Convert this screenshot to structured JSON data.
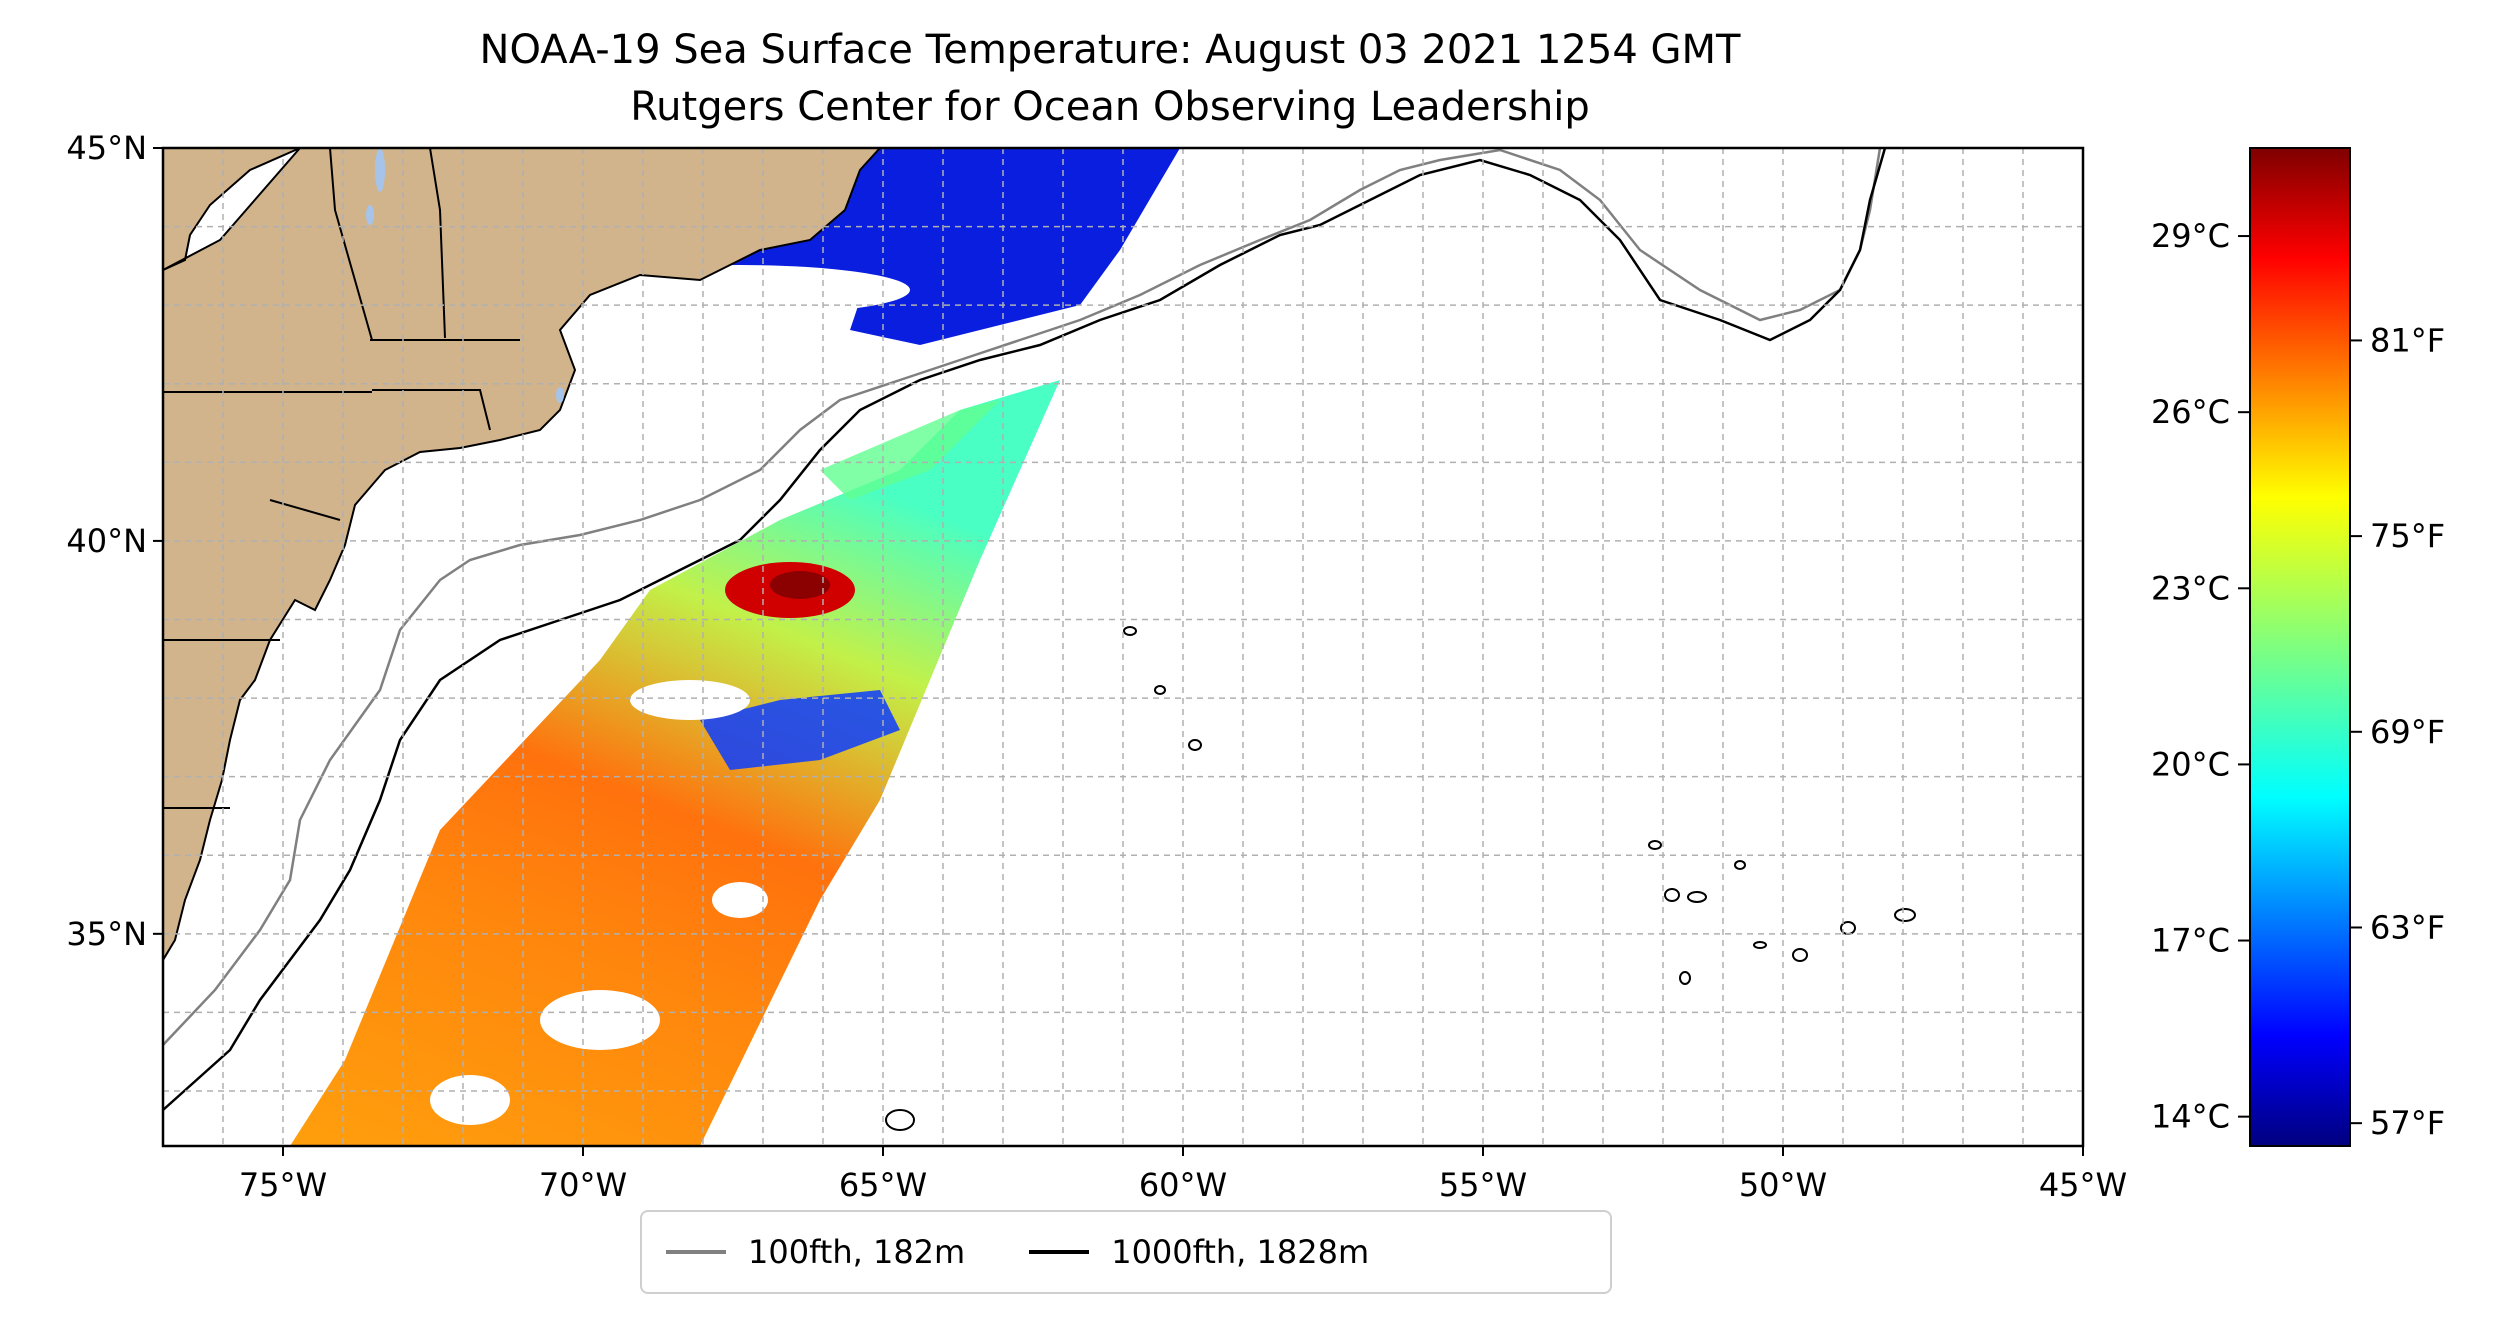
{
  "map": {
    "title_line1": "NOAA-19 Sea Surface Temperature: August 03 2021 1254 GMT",
    "title_line2": "Rutgers Center for Ocean Observing Leadership",
    "extent": {
      "lon_min": -77,
      "lon_max": -45,
      "lat_min": 32.3,
      "lat_max": 45
    },
    "lon_ticks": [
      {
        "value": -75,
        "label": "75°W"
      },
      {
        "value": -70,
        "label": "70°W"
      },
      {
        "value": -65,
        "label": "65°W"
      },
      {
        "value": -60,
        "label": "60°W"
      },
      {
        "value": -55,
        "label": "55°W"
      },
      {
        "value": -50,
        "label": "50°W"
      },
      {
        "value": -45,
        "label": "45°W"
      }
    ],
    "lat_ticks": [
      {
        "value": 45,
        "label": "45°N"
      },
      {
        "value": 40,
        "label": "40°N"
      },
      {
        "value": 35,
        "label": "35°N"
      }
    ],
    "land_color": "#d2b48c",
    "lake_color": "#a6c4ea"
  },
  "colorbar": {
    "celsius_ticks": [
      {
        "value": 29,
        "label": "29°C"
      },
      {
        "value": 26,
        "label": "26°C"
      },
      {
        "value": 23,
        "label": "23°C"
      },
      {
        "value": 20,
        "label": "20°C"
      },
      {
        "value": 17,
        "label": "17°C"
      },
      {
        "value": 14,
        "label": "14°C"
      }
    ],
    "fahrenheit_ticks": [
      {
        "value": 81,
        "label": "81°F"
      },
      {
        "value": 75,
        "label": "75°F"
      },
      {
        "value": 69,
        "label": "69°F"
      },
      {
        "value": 63,
        "label": "63°F"
      },
      {
        "value": 57,
        "label": "57°F"
      }
    ],
    "range_celsius": [
      13.5,
      30.5
    ],
    "colormap": "jet"
  },
  "legend": {
    "items": [
      {
        "label": "100fth, 182m",
        "color": "#808080"
      },
      {
        "label": "1000fth, 1828m",
        "color": "#000000"
      }
    ]
  }
}
